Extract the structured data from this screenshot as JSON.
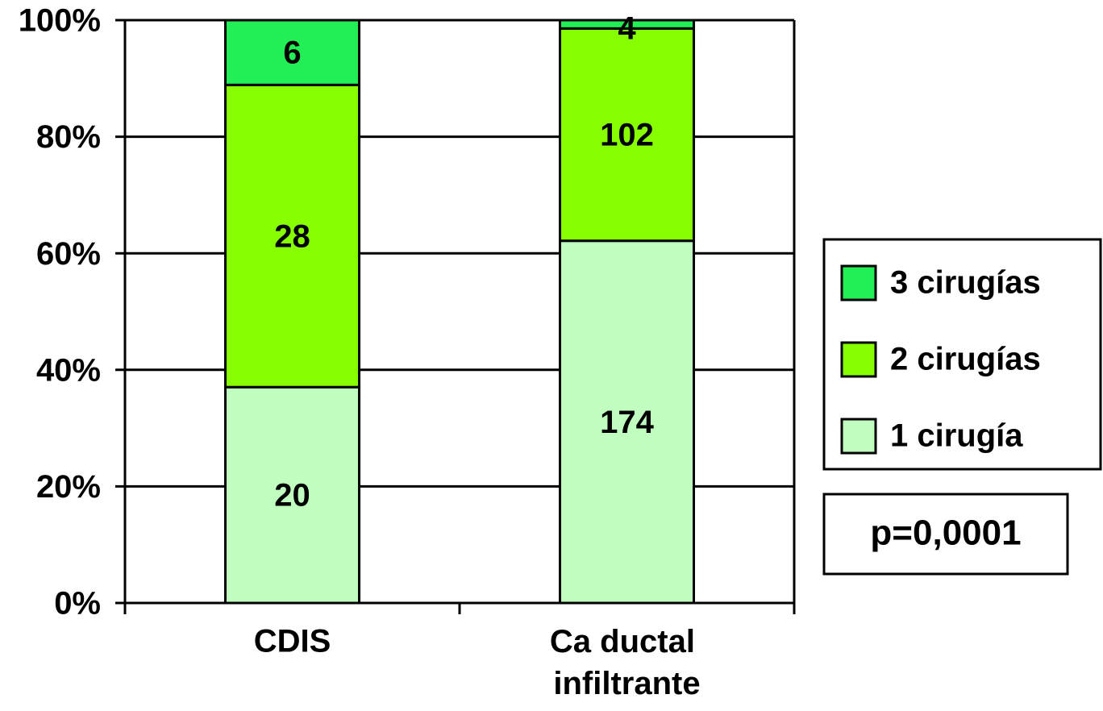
{
  "chart_data": {
    "type": "bar",
    "stacking": "percent",
    "categories": [
      "CDIS",
      "Ca ductal infiltrante"
    ],
    "series": [
      {
        "name": "1 cirugía",
        "color": "#c0ffc0",
        "values": [
          20,
          174
        ]
      },
      {
        "name": "2 cirugías",
        "color": "#88ff00",
        "values": [
          28,
          102
        ]
      },
      {
        "name": "3 cirugías",
        "color": "#22ee55",
        "values": [
          6,
          4
        ]
      }
    ],
    "ylim": [
      0,
      100
    ],
    "yticks": [
      {
        "value": 0,
        "label": "0%"
      },
      {
        "value": 20,
        "label": "20%"
      },
      {
        "value": 40,
        "label": "40%"
      },
      {
        "value": 60,
        "label": "60%"
      },
      {
        "value": 80,
        "label": "80%"
      },
      {
        "value": 100,
        "label": "100%"
      }
    ],
    "grid": true,
    "legend": "right",
    "annotation": "p=0,0001"
  }
}
